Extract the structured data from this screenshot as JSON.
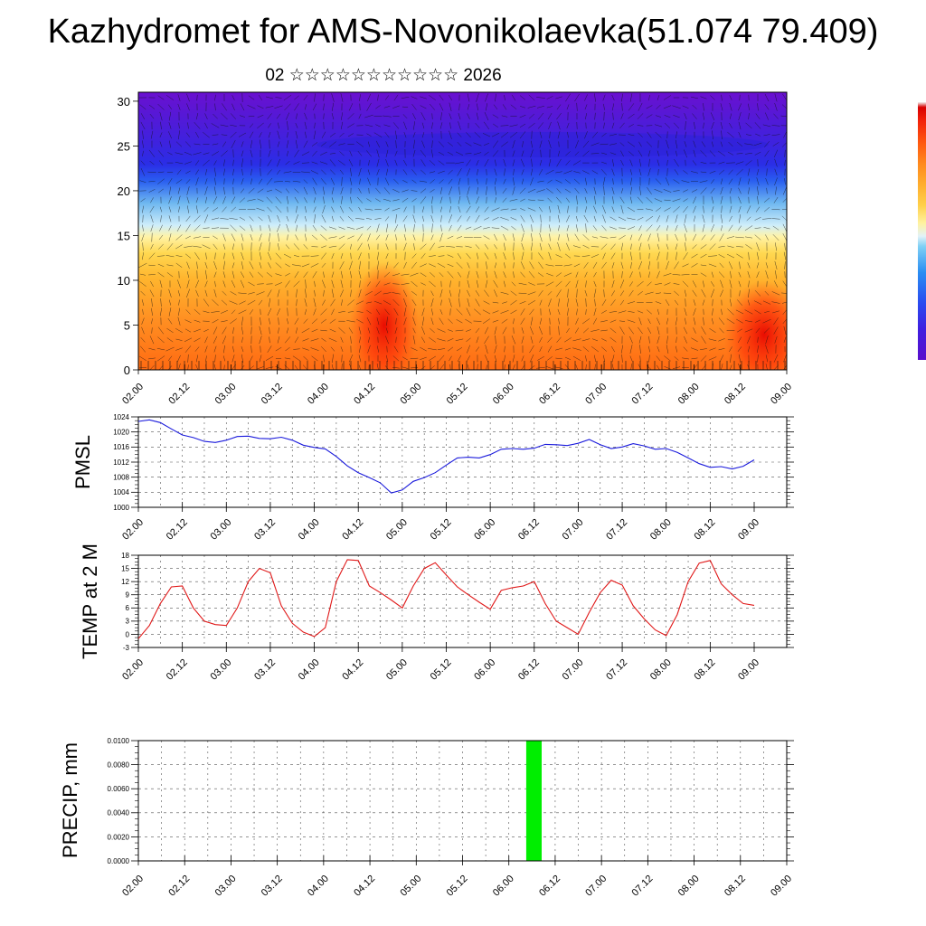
{
  "header": {
    "title": "Kazhydromet for AMS-Novonikolaevka(51.074 79.409)",
    "subtitle": "02 ☆☆☆☆☆☆☆☆☆☆☆ 2026"
  },
  "colors": {
    "pressure_line": "#1a1adc",
    "temp_line": "#e01818",
    "precip_bar": "#00ee00"
  },
  "chart_data": [
    {
      "id": "vertical-section",
      "type": "heatmap",
      "title": "02 ☆☆☆☆☆☆☆☆☆☆☆ 2026",
      "ylabel": "",
      "ylim": [
        0,
        31
      ],
      "yticks": [
        0,
        5,
        10,
        15,
        20,
        25,
        30
      ],
      "xlabels": [
        "02.00",
        "02.12",
        "03.00",
        "03.12",
        "04.00",
        "04.12",
        "05.00",
        "05.12",
        "06.00",
        "06.12",
        "07.00",
        "07.12",
        "08.00",
        "08.12",
        "09.00"
      ],
      "colorbar": [
        "#5a0ecc",
        "#3f1fe0",
        "#2a4bf0",
        "#2a8ef2",
        "#7fd0f5",
        "#e2f2f8",
        "#fff2a0",
        "#ffd04a",
        "#ffae2e",
        "#ff8a1e",
        "#ff5a10",
        "#f2200a",
        "#d80000"
      ]
    },
    {
      "id": "pmsl",
      "type": "line",
      "ylabel": "PMSL",
      "ylim": [
        1000,
        1024
      ],
      "yticks": [
        1000,
        1004,
        1008,
        1012,
        1016,
        1020,
        1024
      ],
      "xlabels": [
        "02.00",
        "02.12",
        "03.00",
        "03.12",
        "04.00",
        "04.12",
        "05.00",
        "05.12",
        "06.00",
        "06.12",
        "07.00",
        "07.12",
        "08.00",
        "08.12",
        "09.00"
      ],
      "x": [
        0,
        3,
        6,
        9,
        12,
        15,
        18,
        21,
        24,
        27,
        30,
        33,
        36,
        39,
        42,
        45,
        48,
        51,
        54,
        57,
        60,
        63,
        66,
        69,
        72,
        75,
        78,
        81,
        84,
        87,
        90,
        93,
        96,
        99,
        102,
        105,
        108,
        111,
        114,
        117,
        120,
        123,
        126,
        129,
        132,
        135,
        138,
        141,
        144,
        147,
        150,
        153,
        156,
        159,
        162,
        165,
        168
      ],
      "values": [
        1022.8,
        1023.2,
        1022.5,
        1020.8,
        1019.2,
        1018.5,
        1017.5,
        1017.2,
        1017.8,
        1018.8,
        1018.9,
        1018.3,
        1018.2,
        1018.6,
        1017.8,
        1016.5,
        1015.9,
        1015.5,
        1013.5,
        1011.0,
        1009.2,
        1007.9,
        1006.5,
        1003.8,
        1004.6,
        1006.9,
        1007.9,
        1009.2,
        1011.2,
        1013.1,
        1013.3,
        1013.1,
        1014.0,
        1015.4,
        1015.6,
        1015.4,
        1015.7,
        1016.7,
        1016.6,
        1016.4,
        1017.0,
        1018.0,
        1016.6,
        1015.6,
        1016.0,
        1016.9,
        1016.3,
        1015.4,
        1015.6,
        1014.6,
        1013.1,
        1011.6,
        1010.6,
        1010.8,
        1010.2,
        1010.9,
        1012.6
      ]
    },
    {
      "id": "temp2m",
      "type": "line",
      "ylabel": "TEMP at 2 M",
      "ylim": [
        -3,
        18
      ],
      "yticks": [
        -3,
        0,
        3,
        6,
        9,
        12,
        15,
        18
      ],
      "xlabels": [
        "02.00",
        "02.12",
        "03.00",
        "03.12",
        "04.00",
        "04.12",
        "05.00",
        "05.12",
        "06.00",
        "06.12",
        "07.00",
        "07.12",
        "08.00",
        "08.12",
        "09.00"
      ],
      "x": [
        0,
        3,
        6,
        9,
        12,
        15,
        18,
        21,
        24,
        27,
        30,
        33,
        36,
        39,
        42,
        45,
        48,
        51,
        54,
        57,
        60,
        63,
        66,
        69,
        72,
        75,
        78,
        81,
        84,
        87,
        90,
        93,
        96,
        99,
        102,
        105,
        108,
        111,
        114,
        117,
        120,
        123,
        126,
        129,
        132,
        135,
        138,
        141,
        144,
        147,
        150,
        153,
        156,
        159,
        162,
        165,
        168
      ],
      "values": [
        -1.0,
        2.0,
        7.0,
        10.8,
        11.0,
        6.0,
        3.0,
        2.2,
        2.0,
        6.0,
        12.0,
        15.0,
        14.0,
        6.5,
        2.5,
        0.5,
        -0.5,
        1.5,
        12.0,
        17.0,
        16.8,
        11.0,
        9.5,
        7.8,
        6.0,
        11.0,
        15.0,
        16.3,
        13.5,
        10.8,
        9.0,
        7.3,
        5.7,
        10.0,
        10.6,
        11.0,
        12.0,
        7.0,
        3.0,
        1.5,
        0.0,
        5.0,
        9.5,
        12.3,
        11.2,
        6.5,
        3.5,
        1.0,
        -0.3,
        4.5,
        12.0,
        16.2,
        16.8,
        11.5,
        9.0,
        7.0,
        6.6
      ]
    },
    {
      "id": "precip",
      "type": "bar",
      "ylabel": "PRECIP, mm",
      "ylim": [
        0,
        0.01
      ],
      "yticks": [
        "0.0000",
        "0.0020",
        "0.0040",
        "0.0060",
        "0.0080",
        "0.0100"
      ],
      "xlabels": [
        "02.00",
        "02.12",
        "03.00",
        "03.12",
        "04.00",
        "04.12",
        "05.00",
        "05.12",
        "06.00",
        "06.12",
        "07.00",
        "07.12",
        "08.00",
        "08.12",
        "09.00"
      ],
      "bars": [
        {
          "x_start": 100.5,
          "x_end": 104.5,
          "value": 0.01
        }
      ]
    }
  ]
}
